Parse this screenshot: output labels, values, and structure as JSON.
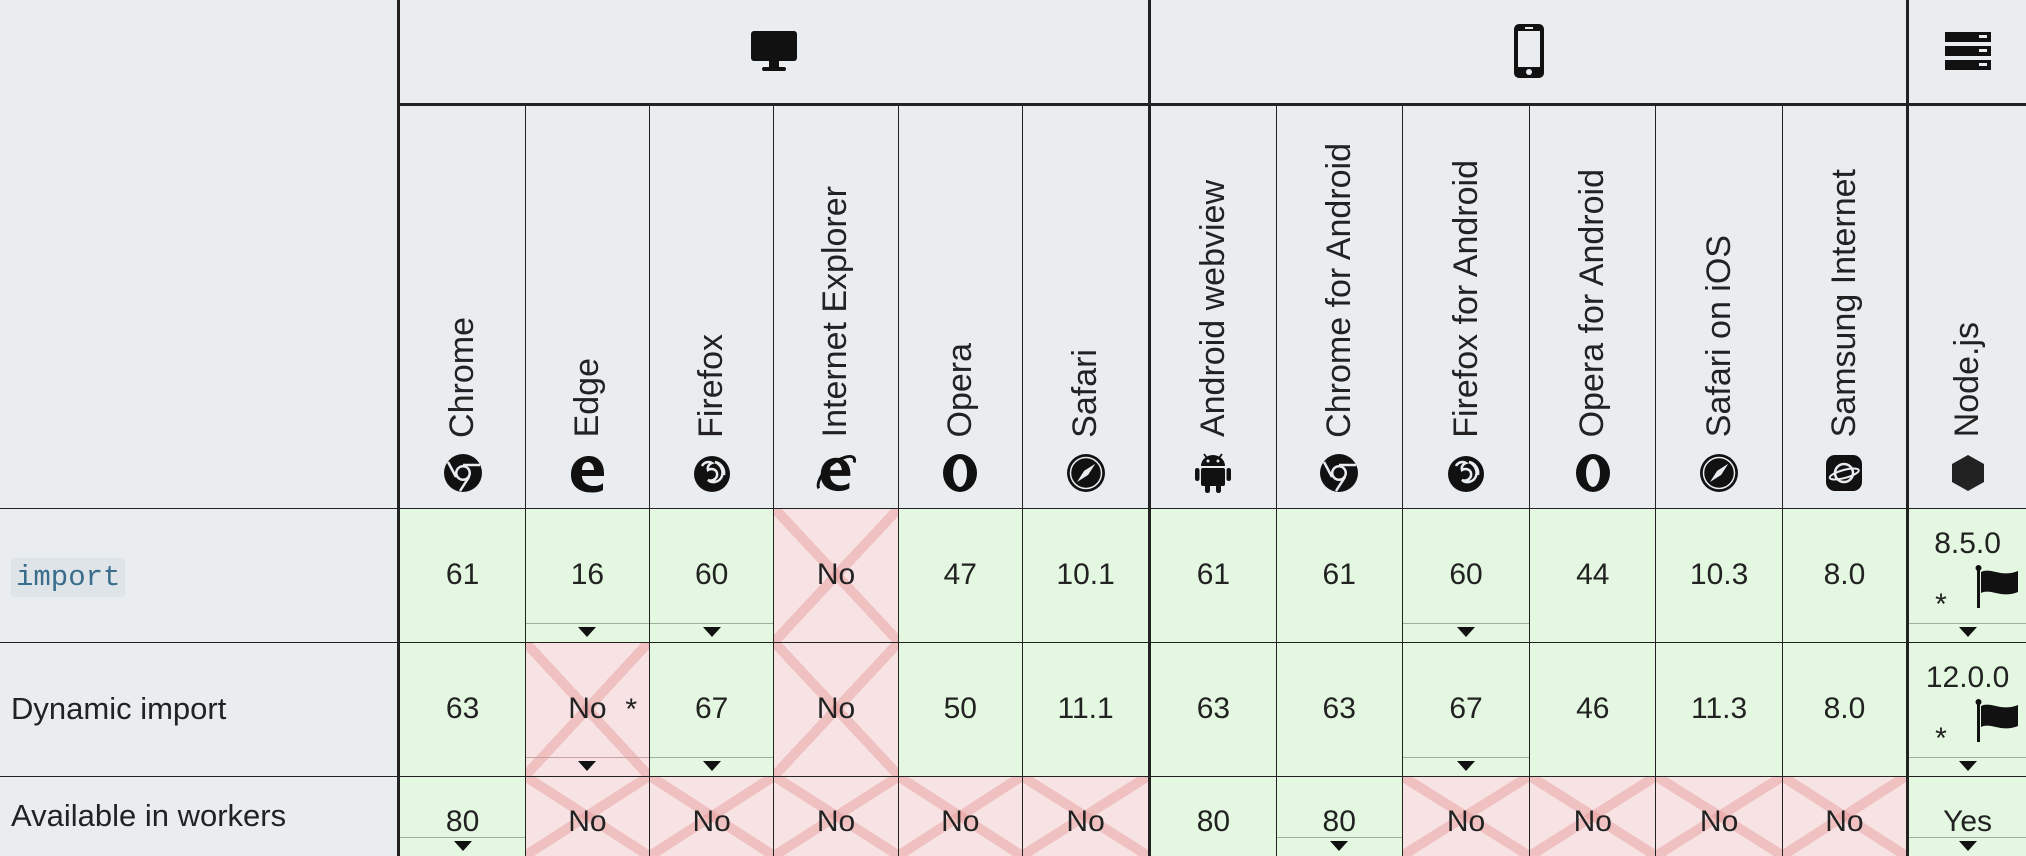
{
  "platforms": [
    {
      "name": "desktop-icon"
    },
    {
      "name": "mobile-icon"
    },
    {
      "name": "server-icon"
    }
  ],
  "browsers": [
    {
      "label": "Chrome",
      "icon": "chrome-icon"
    },
    {
      "label": "Edge",
      "icon": "edge-icon"
    },
    {
      "label": "Firefox",
      "icon": "firefox-icon"
    },
    {
      "label": "Internet Explorer",
      "icon": "internet-explorer-icon"
    },
    {
      "label": "Opera",
      "icon": "opera-icon"
    },
    {
      "label": "Safari",
      "icon": "safari-icon"
    },
    {
      "label": "Android webview",
      "icon": "android-icon"
    },
    {
      "label": "Chrome for Android",
      "icon": "chrome-icon"
    },
    {
      "label": "Firefox for Android",
      "icon": "firefox-icon"
    },
    {
      "label": "Opera for Android",
      "icon": "opera-icon"
    },
    {
      "label": "Safari on iOS",
      "icon": "safari-icon"
    },
    {
      "label": "Samsung Internet",
      "icon": "samsung-internet-icon"
    },
    {
      "label": "Node.js",
      "icon": "nodejs-icon"
    }
  ],
  "rows": [
    {
      "label": "import",
      "cells": [
        {
          "text": "61",
          "status": "yes",
          "expander": false
        },
        {
          "text": "16",
          "status": "yes",
          "expander": true
        },
        {
          "text": "60",
          "status": "yes",
          "expander": true
        },
        {
          "text": "No",
          "status": "no",
          "expander": false
        },
        {
          "text": "47",
          "status": "yes",
          "expander": false
        },
        {
          "text": "10.1",
          "status": "yes",
          "expander": false
        },
        {
          "text": "61",
          "status": "yes",
          "expander": false
        },
        {
          "text": "61",
          "status": "yes",
          "expander": false
        },
        {
          "text": "60",
          "status": "yes",
          "expander": true
        },
        {
          "text": "44",
          "status": "yes",
          "expander": false
        },
        {
          "text": "10.3",
          "status": "yes",
          "expander": false
        },
        {
          "text": "8.0",
          "status": "yes",
          "expander": false
        },
        {
          "text": "8.5.0",
          "status": "yes",
          "expander": true
        }
      ]
    },
    {
      "label": "Dynamic import",
      "cells": [
        {
          "text": "63",
          "status": "yes",
          "expander": false
        },
        {
          "text": "No",
          "status": "no",
          "expander": true
        },
        {
          "text": "67",
          "status": "yes",
          "expander": true
        },
        {
          "text": "No",
          "status": "no",
          "expander": false
        },
        {
          "text": "50",
          "status": "yes",
          "expander": false
        },
        {
          "text": "11.1",
          "status": "yes",
          "expander": false
        },
        {
          "text": "63",
          "status": "yes",
          "expander": false
        },
        {
          "text": "63",
          "status": "yes",
          "expander": false
        },
        {
          "text": "67",
          "status": "yes",
          "expander": true
        },
        {
          "text": "46",
          "status": "yes",
          "expander": false
        },
        {
          "text": "11.3",
          "status": "yes",
          "expander": false
        },
        {
          "text": "8.0",
          "status": "yes",
          "expander": false
        },
        {
          "text": "12.0.0",
          "status": "yes",
          "expander": true
        }
      ]
    },
    {
      "label": "Available in workers",
      "cells": [
        {
          "text": "80",
          "status": "yes",
          "expander": true
        },
        {
          "text": "No",
          "status": "no",
          "expander": false
        },
        {
          "text": "No",
          "status": "no",
          "expander": false
        },
        {
          "text": "No",
          "status": "no",
          "expander": false
        },
        {
          "text": "No",
          "status": "no",
          "expander": false
        },
        {
          "text": "No",
          "status": "no",
          "expander": false
        },
        {
          "text": "80",
          "status": "yes",
          "expander": false
        },
        {
          "text": "80",
          "status": "yes",
          "expander": true
        },
        {
          "text": "No",
          "status": "no",
          "expander": false
        },
        {
          "text": "No",
          "status": "no",
          "expander": false
        },
        {
          "text": "No",
          "status": "no",
          "expander": false
        },
        {
          "text": "No",
          "status": "no",
          "expander": false
        },
        {
          "text": "Yes",
          "status": "yes",
          "expander": true
        }
      ]
    }
  ],
  "notes": {
    "asterisk": "*"
  },
  "colors": {
    "supported_bg": "#e4f8e1",
    "unsupported_bg": "#f7e3e3",
    "header_bg": "#e9edf0",
    "code_color": "#3a6d8c"
  }
}
